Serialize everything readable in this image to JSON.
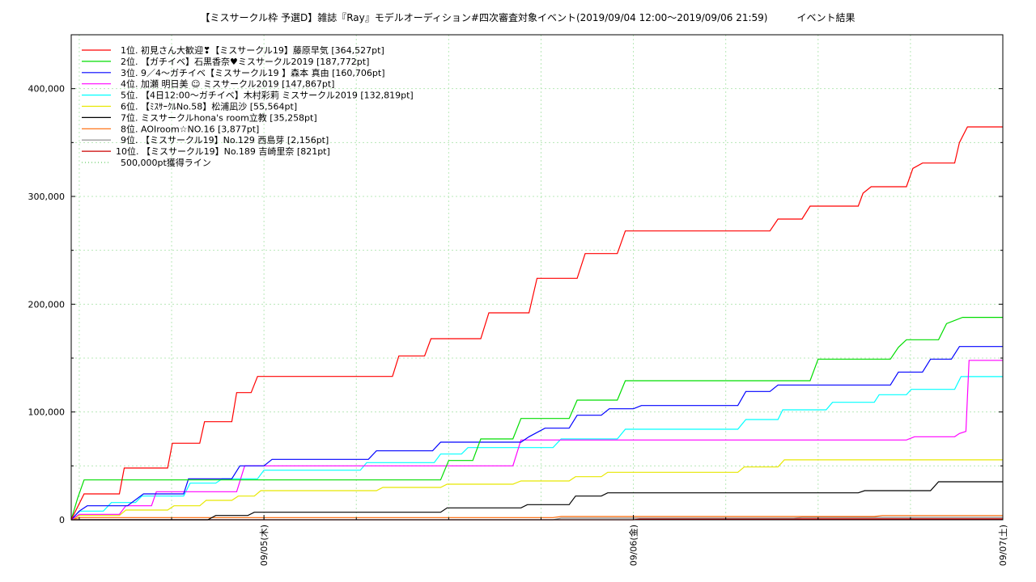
{
  "chart_data": {
    "type": "line",
    "title": "【ミスサークル枠 予選D】雑誌『Ray』モデルオーディション#四次審査対象イベント(2019/09/04 12:00〜2019/09/06 21:59)　　　イベント結果",
    "xlabel": "",
    "ylabel": "",
    "x_unit": "hours since 2019/09/04 12:00",
    "xlim": [
      0,
      58
    ],
    "ylim": [
      0,
      450000
    ],
    "y_ticks": [
      0,
      100000,
      200000,
      300000,
      400000
    ],
    "y_tick_labels": [
      "0",
      "100,000",
      "200,000",
      "300,000",
      "400,000"
    ],
    "x_ticks": [
      12,
      35,
      58
    ],
    "x_tick_labels": [
      "09/05(木)",
      "09/06(金)",
      "09/07(土)"
    ],
    "grid": true,
    "legend_position": "top-left",
    "series": [
      {
        "name": "1位. 初見さん大歓迎❣【ミスサークル19】藤原早気 [364,527pt]",
        "color": "#ff0000",
        "points": [
          [
            0,
            0
          ],
          [
            0.8,
            24000
          ],
          [
            3,
            24000
          ],
          [
            3.3,
            48000
          ],
          [
            6,
            48000
          ],
          [
            6.3,
            71000
          ],
          [
            8,
            71000
          ],
          [
            8.3,
            91000
          ],
          [
            10,
            91000
          ],
          [
            10.3,
            118000
          ],
          [
            11.2,
            118000
          ],
          [
            11.6,
            133000
          ],
          [
            20,
            133000
          ],
          [
            20.4,
            152000
          ],
          [
            22,
            152000
          ],
          [
            22.4,
            168000
          ],
          [
            25.5,
            168000
          ],
          [
            26,
            192000
          ],
          [
            28.5,
            192000
          ],
          [
            29,
            224000
          ],
          [
            31.5,
            224000
          ],
          [
            32,
            247000
          ],
          [
            34,
            247000
          ],
          [
            34.5,
            268000
          ],
          [
            43.5,
            268000
          ],
          [
            44,
            279000
          ],
          [
            45.5,
            279000
          ],
          [
            46,
            291000
          ],
          [
            49,
            291000
          ],
          [
            49.3,
            303000
          ],
          [
            49.8,
            309000
          ],
          [
            52,
            309000
          ],
          [
            52.4,
            326000
          ],
          [
            53,
            331000
          ],
          [
            55,
            331000
          ],
          [
            55.3,
            350000
          ],
          [
            55.8,
            364527
          ],
          [
            58,
            364527
          ]
        ]
      },
      {
        "name": "2位. 【ガチイベ】石黒香奈♥ミスサークル2019 [187,772pt]",
        "color": "#00dd00",
        "points": [
          [
            0,
            0
          ],
          [
            0.4,
            20000
          ],
          [
            0.8,
            37000
          ],
          [
            23,
            37000
          ],
          [
            23.5,
            55000
          ],
          [
            25,
            55000
          ],
          [
            25.5,
            75000
          ],
          [
            27.5,
            75000
          ],
          [
            28,
            94000
          ],
          [
            31,
            94000
          ],
          [
            31.5,
            111000
          ],
          [
            34,
            111000
          ],
          [
            34.5,
            129000
          ],
          [
            46,
            129000
          ],
          [
            46.5,
            149000
          ],
          [
            51,
            149000
          ],
          [
            51.5,
            160000
          ],
          [
            52,
            167000
          ],
          [
            54,
            167000
          ],
          [
            54.5,
            182000
          ],
          [
            55.5,
            187772
          ],
          [
            58,
            187772
          ]
        ]
      },
      {
        "name": "3位. 9／4〜ガチイベ【ミスサークル19 】森本 真由 [160,706pt]",
        "color": "#0000ff",
        "points": [
          [
            0,
            0
          ],
          [
            0.5,
            8000
          ],
          [
            1,
            13000
          ],
          [
            3.5,
            13000
          ],
          [
            4.5,
            24000
          ],
          [
            7,
            24000
          ],
          [
            7.3,
            38000
          ],
          [
            10,
            38000
          ],
          [
            10.5,
            50000
          ],
          [
            12,
            50000
          ],
          [
            12.5,
            56000
          ],
          [
            18.5,
            56000
          ],
          [
            19,
            64000
          ],
          [
            22.5,
            64000
          ],
          [
            23,
            72000
          ],
          [
            28,
            72000
          ],
          [
            28.5,
            77000
          ],
          [
            29.5,
            85000
          ],
          [
            31,
            85000
          ],
          [
            31.5,
            97000
          ],
          [
            33,
            97000
          ],
          [
            33.5,
            103000
          ],
          [
            35,
            103000
          ],
          [
            35.5,
            106000
          ],
          [
            41.5,
            106000
          ],
          [
            42,
            119000
          ],
          [
            43.5,
            119000
          ],
          [
            44,
            125000
          ],
          [
            51,
            125000
          ],
          [
            51.5,
            137000
          ],
          [
            53,
            137000
          ],
          [
            53.5,
            149000
          ],
          [
            54.8,
            149000
          ],
          [
            55.3,
            160706
          ],
          [
            58,
            160706
          ]
        ]
      },
      {
        "name": "4位. 加瀬 明日美 ☺ ミスサークル2019 [147,867pt]",
        "color": "#ff00ff",
        "points": [
          [
            0,
            0
          ],
          [
            0.5,
            5000
          ],
          [
            3,
            5000
          ],
          [
            3.4,
            13000
          ],
          [
            5,
            13000
          ],
          [
            5.3,
            26000
          ],
          [
            10.3,
            26000
          ],
          [
            10.8,
            50000
          ],
          [
            27.5,
            50000
          ],
          [
            28,
            74000
          ],
          [
            52,
            74000
          ],
          [
            52.5,
            77000
          ],
          [
            55,
            77000
          ],
          [
            55.3,
            80000
          ],
          [
            55.7,
            82000
          ],
          [
            55.9,
            147867
          ],
          [
            58,
            147867
          ]
        ]
      },
      {
        "name": "5位. 【4日12:00〜ガチイベ】木村彩莉 ミスサークル2019 [132,819pt]",
        "color": "#00ffff",
        "points": [
          [
            0,
            0
          ],
          [
            0.5,
            8000
          ],
          [
            2,
            8000
          ],
          [
            2.5,
            16000
          ],
          [
            4,
            16000
          ],
          [
            4.4,
            22000
          ],
          [
            7,
            22000
          ],
          [
            7.4,
            34000
          ],
          [
            9,
            34000
          ],
          [
            9.4,
            38000
          ],
          [
            11.6,
            38000
          ],
          [
            12,
            46000
          ],
          [
            18,
            46000
          ],
          [
            18.4,
            53000
          ],
          [
            22.6,
            53000
          ],
          [
            23,
            61000
          ],
          [
            24.3,
            61000
          ],
          [
            24.7,
            67000
          ],
          [
            30,
            67000
          ],
          [
            30.5,
            75000
          ],
          [
            34,
            75000
          ],
          [
            34.5,
            84000
          ],
          [
            41.5,
            84000
          ],
          [
            42,
            93000
          ],
          [
            44,
            93000
          ],
          [
            44.3,
            102000
          ],
          [
            47,
            102000
          ],
          [
            47.4,
            109000
          ],
          [
            50,
            109000
          ],
          [
            50.3,
            116000
          ],
          [
            52,
            116000
          ],
          [
            52.3,
            121000
          ],
          [
            55,
            121000
          ],
          [
            55.4,
            132819
          ],
          [
            58,
            132819
          ]
        ]
      },
      {
        "name": "6位. 【ﾐｽｻｰｸﾙNo.58】松浦凪沙 [55,564pt]",
        "color": "#e8e800",
        "points": [
          [
            0,
            0
          ],
          [
            0.5,
            4000
          ],
          [
            3,
            4000
          ],
          [
            3.4,
            9000
          ],
          [
            6,
            9000
          ],
          [
            6.4,
            13000
          ],
          [
            8,
            13000
          ],
          [
            8.4,
            18000
          ],
          [
            10,
            18000
          ],
          [
            10.4,
            22000
          ],
          [
            11.4,
            22000
          ],
          [
            11.8,
            27000
          ],
          [
            19,
            27000
          ],
          [
            19.4,
            30000
          ],
          [
            23,
            30000
          ],
          [
            23.4,
            33000
          ],
          [
            27.5,
            33000
          ],
          [
            28,
            36000
          ],
          [
            31,
            36000
          ],
          [
            31.4,
            40000
          ],
          [
            33,
            40000
          ],
          [
            33.4,
            44000
          ],
          [
            41.5,
            44000
          ],
          [
            41.9,
            49000
          ],
          [
            44,
            49000
          ],
          [
            44.4,
            55564
          ],
          [
            58,
            55564
          ]
        ]
      },
      {
        "name": "7位. ミスサークルhona's room立教 [35,258pt]",
        "color": "#000000",
        "points": [
          [
            0,
            0
          ],
          [
            8.5,
            0
          ],
          [
            9,
            4000
          ],
          [
            11,
            4000
          ],
          [
            11.4,
            7000
          ],
          [
            23,
            7000
          ],
          [
            23.4,
            11000
          ],
          [
            28,
            11000
          ],
          [
            28.4,
            14000
          ],
          [
            31,
            14000
          ],
          [
            31.4,
            22000
          ],
          [
            33,
            22000
          ],
          [
            33.4,
            25000
          ],
          [
            49,
            25000
          ],
          [
            49.4,
            27000
          ],
          [
            53.5,
            27000
          ],
          [
            54,
            35258
          ],
          [
            58,
            35258
          ]
        ]
      },
      {
        "name": "8位. AOIroom☆NO.16 [3,877pt]",
        "color": "#ff6600",
        "points": [
          [
            0,
            0
          ],
          [
            0.5,
            2000
          ],
          [
            30,
            2000
          ],
          [
            30.5,
            3000
          ],
          [
            50,
            3000
          ],
          [
            50.5,
            3877
          ],
          [
            58,
            3877
          ]
        ]
      },
      {
        "name": "9位. 【ミスサークル19】No.129 西島芽 [2,156pt]",
        "color": "#888888",
        "points": [
          [
            0,
            0
          ],
          [
            30,
            0
          ],
          [
            30.5,
            1500
          ],
          [
            45,
            1500
          ],
          [
            45.5,
            2156
          ],
          [
            58,
            2156
          ]
        ]
      },
      {
        "name": "10位. 【ミスサークル19】No.189 吉崎里奈 [821pt]",
        "color": "#cc0000",
        "points": [
          [
            0,
            0
          ],
          [
            35,
            0
          ],
          [
            35.5,
            821
          ],
          [
            58,
            821
          ]
        ]
      },
      {
        "name": "500,000pt獲得ライン",
        "color": "#66cc66",
        "dashed": true,
        "points": [
          [
            0,
            500000
          ],
          [
            58,
            500000
          ]
        ]
      }
    ]
  }
}
